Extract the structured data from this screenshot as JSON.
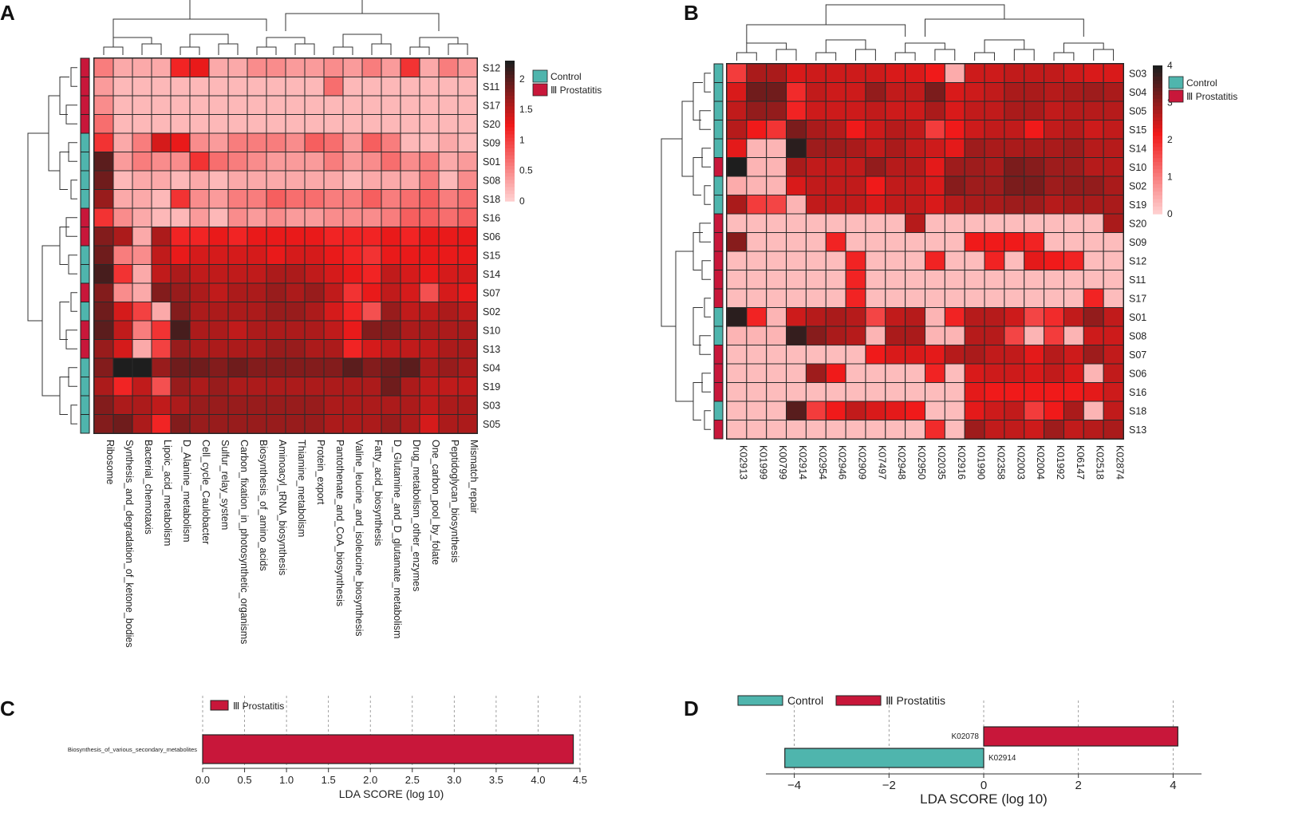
{
  "panels": {
    "A": {
      "label": "A"
    },
    "B": {
      "label": "B"
    },
    "C": {
      "label": "C"
    },
    "D": {
      "label": "D"
    }
  },
  "colors": {
    "control": "#4fb5ad",
    "prostatitis": "#c8173a",
    "heat_low": "#ffd6d6",
    "heat_mid": "#f01a1a",
    "heat_high": "#1e1e1e"
  },
  "chart_data": [
    {
      "id": "A",
      "type": "heatmap",
      "rows": [
        "S12",
        "S11",
        "S17",
        "S20",
        "S09",
        "S01",
        "S08",
        "S18",
        "S16",
        "S06",
        "S15",
        "S14",
        "S07",
        "S02",
        "S10",
        "S13",
        "S04",
        "S19",
        "S03",
        "S05"
      ],
      "row_groups": [
        "P",
        "P",
        "P",
        "P",
        "C",
        "C",
        "C",
        "C",
        "P",
        "P",
        "C",
        "C",
        "P",
        "C",
        "P",
        "P",
        "C",
        "C",
        "C",
        "C"
      ],
      "columns": [
        "Ribosome",
        "Synthesis_and_degradation_of_ketone_bodies",
        "Bacterial_chemotaxis",
        "Lipoic_acid_metabolism",
        "D_Alanine_metabolism",
        "Cell_cycle_Caulobacter",
        "Sulfur_relay_system",
        "Carbon_fixation_in_photosynthetic_organisms",
        "Biosynthesis_of_amino_acids",
        "Aminoacyl_tRNA_biosynthesis",
        "Thiamine_metabolism",
        "Protein_export",
        "Pantothenate_and_CoA_biosynthesis",
        "Valine_leucine_and_isoleucine_biosynthesis",
        "Fatty_acid_biosynthesis",
        "D_Glutamine_and_D_glutamate_metabolism",
        "Drug_metabolism_other_enzymes",
        "One_carbon_pool_by_folate",
        "Peptidoglycan_biosynthesis",
        "Mismatch_repair"
      ],
      "values": [
        [
          0.6,
          0.3,
          0.3,
          0.3,
          1.2,
          1.3,
          0.3,
          0.3,
          0.5,
          0.5,
          0.4,
          0.4,
          0.5,
          0.4,
          0.6,
          0.4,
          1.1,
          0.3,
          0.6,
          0.4
        ],
        [
          0.4,
          0.2,
          0.2,
          0.2,
          0.2,
          0.2,
          0.2,
          0.2,
          0.2,
          0.2,
          0.2,
          0.2,
          0.7,
          0.2,
          0.2,
          0.2,
          0.2,
          0.2,
          0.2,
          0.2
        ],
        [
          0.5,
          0.2,
          0.2,
          0.2,
          0.2,
          0.2,
          0.2,
          0.2,
          0.2,
          0.2,
          0.2,
          0.2,
          0.2,
          0.2,
          0.2,
          0.2,
          0.2,
          0.2,
          0.2,
          0.2
        ],
        [
          0.7,
          0.2,
          0.2,
          0.2,
          0.2,
          0.2,
          0.2,
          0.2,
          0.2,
          0.2,
          0.2,
          0.2,
          0.2,
          0.2,
          0.2,
          0.2,
          0.2,
          0.2,
          0.2,
          0.2
        ],
        [
          1.1,
          0.3,
          0.6,
          1.4,
          1.3,
          0.5,
          0.4,
          0.6,
          0.6,
          0.6,
          0.5,
          0.8,
          0.7,
          0.4,
          0.8,
          0.6,
          0.2,
          0.2,
          0.3,
          0.2
        ],
        [
          2.0,
          0.4,
          0.6,
          0.5,
          0.5,
          1.1,
          0.7,
          0.6,
          0.5,
          0.4,
          0.4,
          0.4,
          0.6,
          0.4,
          0.5,
          0.7,
          0.5,
          0.6,
          0.3,
          0.4
        ],
        [
          1.9,
          0.2,
          0.3,
          0.3,
          0.2,
          0.3,
          0.2,
          0.3,
          0.3,
          0.3,
          0.3,
          0.3,
          0.3,
          0.2,
          0.3,
          0.3,
          0.3,
          0.6,
          0.2,
          0.5
        ],
        [
          1.7,
          0.3,
          0.3,
          0.2,
          1.1,
          0.5,
          0.4,
          0.6,
          0.6,
          0.8,
          0.7,
          0.7,
          0.6,
          0.6,
          0.8,
          0.6,
          0.7,
          0.8,
          0.6,
          0.7
        ],
        [
          1.1,
          0.5,
          0.3,
          0.2,
          0.2,
          0.4,
          0.2,
          0.5,
          0.4,
          0.5,
          0.4,
          0.4,
          0.5,
          0.5,
          0.5,
          0.6,
          0.8,
          0.8,
          0.7,
          0.8
        ],
        [
          1.8,
          1.6,
          0.3,
          1.6,
          1.2,
          1.2,
          1.3,
          1.2,
          1.3,
          1.3,
          1.3,
          1.3,
          1.2,
          1.2,
          1.2,
          1.3,
          1.2,
          1.3,
          1.3,
          1.3
        ],
        [
          1.9,
          0.6,
          0.5,
          1.5,
          1.3,
          1.4,
          1.4,
          1.4,
          1.4,
          1.3,
          1.4,
          1.4,
          1.3,
          1.2,
          1.1,
          1.3,
          1.3,
          1.3,
          1.3,
          1.3
        ],
        [
          2.1,
          1.1,
          0.3,
          1.5,
          1.6,
          1.5,
          1.5,
          1.5,
          1.5,
          1.6,
          1.6,
          1.5,
          1.4,
          1.3,
          1.2,
          1.5,
          1.4,
          1.3,
          1.4,
          1.4
        ],
        [
          1.8,
          0.5,
          0.3,
          1.8,
          1.7,
          1.6,
          1.5,
          1.6,
          1.6,
          1.7,
          1.6,
          1.7,
          1.5,
          1.1,
          1.3,
          1.5,
          1.4,
          0.9,
          1.4,
          1.3
        ],
        [
          1.9,
          1.4,
          1.0,
          0.3,
          1.8,
          1.6,
          1.6,
          1.6,
          1.6,
          1.7,
          1.7,
          1.6,
          1.4,
          1.2,
          0.9,
          1.7,
          1.5,
          1.5,
          1.6,
          1.5
        ],
        [
          2.0,
          1.5,
          0.6,
          1.1,
          2.1,
          1.6,
          1.6,
          1.5,
          1.6,
          1.6,
          1.6,
          1.6,
          1.5,
          1.3,
          1.8,
          1.8,
          1.6,
          1.6,
          1.6,
          1.6
        ],
        [
          1.7,
          1.4,
          0.3,
          1.0,
          1.7,
          1.6,
          1.6,
          1.6,
          1.6,
          1.7,
          1.7,
          1.6,
          1.6,
          1.2,
          1.4,
          1.5,
          1.5,
          1.5,
          1.6,
          1.6
        ],
        [
          1.8,
          2.3,
          2.3,
          1.7,
          1.9,
          1.9,
          1.8,
          1.9,
          1.8,
          1.8,
          1.8,
          1.8,
          1.8,
          2.0,
          1.8,
          1.9,
          2.0,
          1.6,
          1.7,
          1.6
        ],
        [
          1.6,
          1.2,
          1.5,
          0.9,
          1.7,
          1.6,
          1.7,
          1.6,
          1.6,
          1.6,
          1.6,
          1.6,
          1.6,
          1.6,
          1.6,
          1.9,
          1.6,
          1.5,
          1.5,
          1.5
        ],
        [
          1.8,
          1.6,
          1.6,
          1.5,
          1.6,
          1.7,
          1.7,
          1.7,
          1.7,
          1.7,
          1.7,
          1.7,
          1.6,
          1.6,
          1.6,
          1.6,
          1.6,
          1.5,
          1.6,
          1.6
        ],
        [
          1.8,
          1.9,
          1.6,
          1.2,
          1.8,
          1.7,
          1.7,
          1.7,
          1.7,
          1.7,
          1.7,
          1.7,
          1.6,
          1.6,
          1.6,
          1.7,
          1.6,
          1.4,
          1.6,
          1.6
        ]
      ],
      "colorbar": {
        "min": 0,
        "max": 2.3,
        "ticks": [
          "2",
          "1.5",
          "1",
          "0.5",
          "0"
        ],
        "tick_values": [
          2,
          1.5,
          1,
          0.5,
          0
        ]
      },
      "legend": [
        "Control",
        "Ⅲ Prostatitis"
      ]
    },
    {
      "id": "B",
      "type": "heatmap",
      "rows": [
        "S03",
        "S04",
        "S05",
        "S15",
        "S14",
        "S10",
        "S02",
        "S19",
        "S20",
        "S09",
        "S12",
        "S11",
        "S17",
        "S01",
        "S08",
        "S07",
        "S06",
        "S16",
        "S18",
        "S13"
      ],
      "row_groups": [
        "C",
        "C",
        "C",
        "C",
        "C",
        "P",
        "C",
        "C",
        "P",
        "P",
        "P",
        "P",
        "P",
        "C",
        "C",
        "P",
        "P",
        "P",
        "C",
        "P"
      ],
      "columns": [
        "K02913",
        "K01999",
        "K00799",
        "K02914",
        "K02954",
        "K02946",
        "K02909",
        "K07497",
        "K02948",
        "K02950",
        "K02035",
        "K02916",
        "K01990",
        "K02358",
        "K02003",
        "K02004",
        "K01992",
        "K06147",
        "K02518",
        "K02874"
      ],
      "values": [
        [
          1.8,
          2.8,
          2.8,
          2.4,
          2.5,
          2.5,
          2.5,
          2.5,
          2.4,
          2.4,
          2.2,
          0.5,
          2.5,
          2.5,
          2.6,
          2.6,
          2.6,
          2.5,
          2.4,
          2.4
        ],
        [
          2.4,
          3.3,
          3.3,
          2.0,
          2.6,
          2.5,
          2.5,
          3.0,
          2.6,
          2.6,
          3.2,
          2.4,
          2.5,
          2.6,
          2.8,
          2.8,
          2.7,
          2.8,
          2.9,
          2.8
        ],
        [
          2.6,
          3.0,
          3.0,
          2.1,
          2.5,
          2.5,
          2.5,
          2.6,
          2.5,
          2.5,
          2.8,
          2.4,
          2.6,
          2.6,
          2.8,
          2.8,
          2.6,
          2.7,
          2.7,
          2.7
        ],
        [
          2.7,
          2.2,
          1.9,
          3.2,
          2.8,
          2.7,
          2.2,
          2.5,
          2.7,
          2.6,
          1.8,
          2.2,
          2.5,
          2.6,
          2.6,
          2.2,
          2.6,
          2.7,
          2.5,
          2.6
        ],
        [
          2.3,
          0.4,
          0.4,
          3.9,
          2.9,
          2.9,
          2.8,
          2.6,
          2.8,
          2.6,
          2.5,
          2.3,
          2.9,
          2.8,
          2.8,
          2.8,
          2.8,
          2.9,
          2.7,
          2.7
        ],
        [
          4.0,
          0.4,
          0.4,
          2.8,
          2.6,
          2.6,
          2.6,
          3.0,
          2.7,
          2.7,
          2.3,
          2.9,
          2.9,
          2.8,
          3.2,
          3.1,
          2.9,
          2.9,
          2.7,
          2.7
        ],
        [
          0.5,
          0.4,
          0.4,
          2.4,
          2.6,
          2.6,
          2.6,
          2.2,
          2.6,
          2.6,
          2.4,
          3.1,
          2.9,
          2.9,
          3.2,
          3.2,
          2.9,
          3.0,
          3.0,
          2.8
        ],
        [
          2.8,
          1.8,
          1.7,
          0.4,
          2.6,
          2.6,
          2.6,
          2.4,
          2.6,
          2.6,
          2.4,
          2.7,
          2.8,
          2.8,
          2.9,
          2.9,
          2.7,
          2.8,
          2.8,
          2.8
        ],
        [
          0.3,
          0.3,
          0.3,
          0.3,
          0.3,
          0.3,
          0.3,
          0.3,
          0.3,
          2.7,
          0.3,
          0.3,
          0.3,
          0.3,
          0.3,
          0.3,
          0.3,
          0.3,
          0.3,
          2.8
        ],
        [
          3.1,
          0.3,
          0.3,
          0.3,
          0.3,
          2.1,
          0.3,
          0.3,
          0.3,
          0.3,
          0.3,
          0.3,
          2.2,
          2.2,
          2.2,
          2.1,
          0.3,
          0.3,
          0.3,
          0.3
        ],
        [
          0.3,
          0.3,
          0.3,
          0.3,
          0.3,
          0.3,
          2.1,
          0.3,
          0.3,
          0.3,
          2.1,
          0.3,
          0.3,
          2.1,
          0.3,
          2.3,
          2.2,
          2.1,
          0.3,
          0.3
        ],
        [
          0.3,
          0.3,
          0.3,
          0.3,
          0.3,
          0.3,
          2.1,
          0.3,
          0.3,
          0.3,
          0.3,
          0.3,
          0.3,
          0.3,
          0.3,
          0.3,
          0.3,
          0.3,
          0.3,
          0.3
        ],
        [
          0.3,
          0.3,
          0.3,
          0.3,
          0.3,
          0.3,
          2.1,
          0.3,
          0.3,
          0.3,
          0.3,
          0.3,
          0.3,
          0.3,
          0.3,
          0.3,
          0.3,
          0.3,
          2.1,
          0.3
        ],
        [
          3.9,
          2.1,
          0.4,
          2.5,
          2.7,
          2.8,
          2.7,
          1.7,
          2.6,
          2.7,
          0.4,
          2.1,
          2.7,
          2.7,
          2.5,
          1.7,
          2.0,
          2.6,
          3.0,
          2.6
        ],
        [
          0.4,
          0.4,
          0.4,
          3.8,
          3.1,
          2.8,
          2.7,
          0.4,
          2.8,
          2.8,
          0.4,
          0.4,
          2.7,
          2.7,
          1.7,
          0.4,
          1.8,
          0.4,
          2.5,
          2.5
        ],
        [
          0.3,
          0.3,
          0.3,
          0.3,
          0.3,
          0.3,
          0.3,
          2.2,
          2.4,
          2.4,
          2.3,
          2.7,
          2.8,
          2.6,
          2.6,
          2.3,
          2.7,
          2.5,
          2.9,
          2.6
        ],
        [
          0.3,
          0.3,
          0.3,
          0.3,
          2.9,
          2.2,
          0.3,
          0.3,
          0.3,
          0.3,
          2.1,
          0.3,
          2.4,
          2.5,
          2.5,
          2.4,
          2.6,
          2.4,
          0.4,
          2.6
        ],
        [
          0.3,
          0.3,
          0.3,
          0.3,
          0.3,
          0.3,
          0.3,
          0.3,
          0.3,
          0.3,
          0.3,
          0.3,
          2.3,
          2.2,
          2.2,
          2.2,
          2.2,
          2.2,
          2.3,
          2.5
        ],
        [
          0.3,
          0.3,
          0.3,
          3.5,
          1.8,
          2.2,
          2.6,
          2.4,
          2.3,
          2.2,
          0.3,
          0.3,
          2.3,
          2.5,
          2.6,
          1.8,
          2.2,
          2.8,
          0.4,
          2.6
        ],
        [
          0.3,
          0.3,
          0.3,
          0.3,
          0.3,
          0.3,
          0.3,
          0.3,
          0.3,
          0.3,
          2.0,
          0.3,
          2.9,
          2.6,
          2.6,
          2.5,
          2.9,
          2.6,
          2.7,
          2.8
        ]
      ],
      "colorbar": {
        "min": 0,
        "max": 4,
        "ticks": [
          "4",
          "3",
          "2",
          "1",
          "0"
        ],
        "tick_values": [
          4,
          3,
          2,
          1,
          0
        ]
      },
      "legend": [
        "Control",
        "Ⅲ Prostatitis"
      ]
    },
    {
      "id": "C",
      "type": "bar",
      "orientation": "horizontal",
      "categories": [
        "Biosynthesis_of_various_secondary_metabolites"
      ],
      "values": [
        4.42
      ],
      "groups": [
        "prostatitis"
      ],
      "legend": [
        "Ⅲ Prostatitis"
      ],
      "xlabel": "LDA SCORE (log 10)",
      "xlim": [
        0,
        4.5
      ],
      "xticks": [
        "0.0",
        "0.5",
        "1.0",
        "1.5",
        "2.0",
        "2.5",
        "3.0",
        "3.5",
        "4.0",
        "4.5"
      ],
      "xtick_values": [
        0,
        0.5,
        1,
        1.5,
        2,
        2.5,
        3,
        3.5,
        4,
        4.5
      ]
    },
    {
      "id": "D",
      "type": "bar",
      "orientation": "horizontal",
      "categories": [
        "K02078",
        "K02914"
      ],
      "values": [
        4.1,
        -4.2
      ],
      "groups": [
        "prostatitis",
        "control"
      ],
      "legend": [
        "Control",
        "Ⅲ Prostatitis"
      ],
      "xlabel": "LDA SCORE (log 10)",
      "xlim": [
        -4.6,
        4.6
      ],
      "xticks": [
        "−4",
        "−2",
        "0",
        "2",
        "4"
      ],
      "xtick_values": [
        -4,
        -2,
        0,
        2,
        4
      ]
    }
  ]
}
